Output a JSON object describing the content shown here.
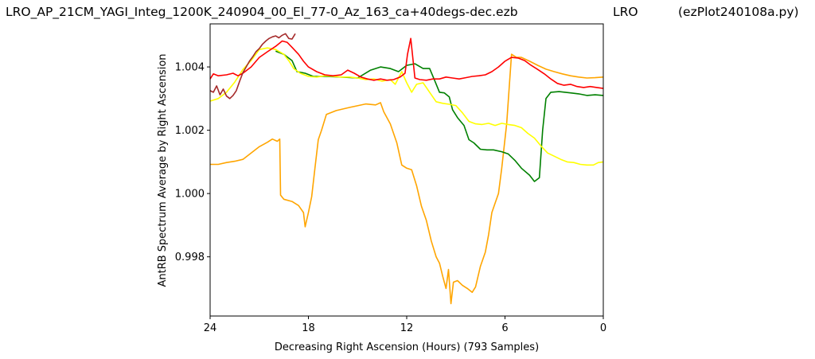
{
  "header": {
    "filename": "LRO_AP_21CM_YAGI_Integ_1200K_240904_00_El_77-0_Az_163_ca+40degs-dec.ezb",
    "site": "LRO",
    "program": "(ezPlot240108a.py)"
  },
  "chart_data": {
    "type": "line",
    "xlabel": "Decreasing Right Ascension (Hours) (793 Samples)",
    "ylabel": "AntRB Spectrum Average by Right Ascension",
    "xlim": [
      24,
      0
    ],
    "ylim": [
      0.99613,
      1.00536
    ],
    "x_reversed": true,
    "grid": false,
    "x_ticks": [
      24,
      18,
      12,
      6,
      0
    ],
    "x_tick_labels": [
      "24",
      "18",
      "12",
      "6",
      "0"
    ],
    "y_ticks": [
      0.998,
      1.0,
      1.002,
      1.004
    ],
    "y_tick_labels": [
      "0.998",
      "1.000",
      "1.002",
      "1.004"
    ],
    "series": [
      {
        "color": "#ffa500",
        "points": [
          [
            24.0,
            1.00092
          ],
          [
            23.5,
            1.00092
          ],
          [
            23.0,
            1.00098
          ],
          [
            22.5,
            1.00102
          ],
          [
            22.0,
            1.00108
          ],
          [
            21.5,
            1.00128
          ],
          [
            21.0,
            1.00148
          ],
          [
            20.5,
            1.00162
          ],
          [
            20.2,
            1.00172
          ],
          [
            19.9,
            1.00165
          ],
          [
            19.75,
            1.00172
          ],
          [
            19.7,
            0.99995
          ],
          [
            19.5,
            0.99982
          ],
          [
            19.0,
            0.99975
          ],
          [
            18.6,
            0.99962
          ],
          [
            18.3,
            0.9994
          ],
          [
            18.2,
            0.99895
          ],
          [
            18.0,
            0.9994
          ],
          [
            17.8,
            0.9999
          ],
          [
            17.6,
            1.0008
          ],
          [
            17.4,
            1.0017
          ],
          [
            17.2,
            1.002
          ],
          [
            16.9,
            1.0025
          ],
          [
            16.3,
            1.00262
          ],
          [
            15.5,
            1.00272
          ],
          [
            14.5,
            1.00283
          ],
          [
            13.9,
            1.0028
          ],
          [
            13.6,
            1.00287
          ],
          [
            13.4,
            1.00258
          ],
          [
            13.0,
            1.0022
          ],
          [
            12.6,
            1.0016
          ],
          [
            12.3,
            1.0009
          ],
          [
            12.0,
            1.0008
          ],
          [
            11.7,
            1.00075
          ],
          [
            11.4,
            1.00025
          ],
          [
            11.1,
            0.9996
          ],
          [
            10.8,
            0.99915
          ],
          [
            10.5,
            0.9985
          ],
          [
            10.2,
            0.998
          ],
          [
            10.0,
            0.9978
          ],
          [
            9.8,
            0.99738
          ],
          [
            9.6,
            0.997
          ],
          [
            9.45,
            0.9976
          ],
          [
            9.3,
            0.99652
          ],
          [
            9.15,
            0.9972
          ],
          [
            8.9,
            0.99725
          ],
          [
            8.6,
            0.9971
          ],
          [
            8.3,
            0.997
          ],
          [
            8.0,
            0.99688
          ],
          [
            7.8,
            0.99705
          ],
          [
            7.5,
            0.9977
          ],
          [
            7.2,
            0.99815
          ],
          [
            7.0,
            0.9987
          ],
          [
            6.8,
            0.9994
          ],
          [
            6.6,
            0.9997
          ],
          [
            6.4,
            1.0
          ],
          [
            6.2,
            1.0008
          ],
          [
            5.9,
            1.0022
          ],
          [
            5.6,
            1.0044
          ],
          [
            5.3,
            1.0043
          ],
          [
            5.0,
            1.0043
          ],
          [
            4.5,
            1.00418
          ],
          [
            4.0,
            1.00405
          ],
          [
            3.5,
            1.00393
          ],
          [
            3.0,
            1.00385
          ],
          [
            2.5,
            1.00378
          ],
          [
            2.0,
            1.00372
          ],
          [
            1.5,
            1.00368
          ],
          [
            1.0,
            1.00365
          ],
          [
            0.5,
            1.00366
          ],
          [
            0.0,
            1.00368
          ]
        ]
      },
      {
        "color": "#008000",
        "points": [
          [
            20.0,
            1.0045
          ],
          [
            19.5,
            1.0044
          ],
          [
            19.0,
            1.0042
          ],
          [
            18.7,
            1.00385
          ],
          [
            18.2,
            1.0038
          ],
          [
            17.7,
            1.0037
          ],
          [
            17.0,
            1.0037
          ],
          [
            16.0,
            1.00368
          ],
          [
            15.0,
            1.00365
          ],
          [
            14.2,
            1.0039
          ],
          [
            13.6,
            1.004
          ],
          [
            13.0,
            1.00395
          ],
          [
            12.5,
            1.00385
          ],
          [
            12.0,
            1.00405
          ],
          [
            11.5,
            1.0041
          ],
          [
            11.0,
            1.00395
          ],
          [
            10.6,
            1.00395
          ],
          [
            10.3,
            1.00358
          ],
          [
            10.0,
            1.0032
          ],
          [
            9.7,
            1.00318
          ],
          [
            9.4,
            1.00305
          ],
          [
            9.2,
            1.00265
          ],
          [
            8.9,
            1.0024
          ],
          [
            8.5,
            1.00215
          ],
          [
            8.2,
            1.0017
          ],
          [
            7.9,
            1.0016
          ],
          [
            7.7,
            1.0015
          ],
          [
            7.5,
            1.0014
          ],
          [
            7.1,
            1.00138
          ],
          [
            6.7,
            1.00138
          ],
          [
            6.2,
            1.00132
          ],
          [
            5.8,
            1.00125
          ],
          [
            5.4,
            1.00105
          ],
          [
            5.0,
            1.0008
          ],
          [
            4.5,
            1.00058
          ],
          [
            4.2,
            1.00038
          ],
          [
            3.9,
            1.0005
          ],
          [
            3.7,
            1.002
          ],
          [
            3.5,
            1.003
          ],
          [
            3.2,
            1.0032
          ],
          [
            2.7,
            1.00322
          ],
          [
            2.0,
            1.00318
          ],
          [
            1.5,
            1.00315
          ],
          [
            1.0,
            1.0031
          ],
          [
            0.5,
            1.00312
          ],
          [
            0.0,
            1.0031
          ]
        ]
      },
      {
        "color": "#ffff00",
        "points": [
          [
            24.0,
            1.00292
          ],
          [
            23.5,
            1.003
          ],
          [
            23.0,
            1.0032
          ],
          [
            22.5,
            1.00352
          ],
          [
            22.0,
            1.00392
          ],
          [
            21.5,
            1.0042
          ],
          [
            21.0,
            1.00455
          ],
          [
            20.5,
            1.0046
          ],
          [
            20.0,
            1.00455
          ],
          [
            19.5,
            1.0044
          ],
          [
            19.2,
            1.0042
          ],
          [
            18.9,
            1.00395
          ],
          [
            18.5,
            1.0038
          ],
          [
            18.0,
            1.0037
          ],
          [
            17.5,
            1.00368
          ],
          [
            17.0,
            1.00372
          ],
          [
            16.5,
            1.0037
          ],
          [
            16.0,
            1.00368
          ],
          [
            15.5,
            1.00368
          ],
          [
            15.0,
            1.00365
          ],
          [
            14.5,
            1.0036
          ],
          [
            14.0,
            1.00362
          ],
          [
            13.5,
            1.00355
          ],
          [
            13.0,
            1.0036
          ],
          [
            12.7,
            1.00345
          ],
          [
            12.3,
            1.00385
          ],
          [
            12.0,
            1.0035
          ],
          [
            11.7,
            1.0032
          ],
          [
            11.4,
            1.00345
          ],
          [
            11.0,
            1.0035
          ],
          [
            10.6,
            1.0032
          ],
          [
            10.2,
            1.0029
          ],
          [
            9.8,
            1.00285
          ],
          [
            9.4,
            1.00282
          ],
          [
            9.0,
            1.00278
          ],
          [
            8.6,
            1.00255
          ],
          [
            8.2,
            1.00228
          ],
          [
            7.8,
            1.0022
          ],
          [
            7.4,
            1.00218
          ],
          [
            7.0,
            1.00222
          ],
          [
            6.6,
            1.00215
          ],
          [
            6.2,
            1.00222
          ],
          [
            5.8,
            1.00218
          ],
          [
            5.4,
            1.00215
          ],
          [
            5.0,
            1.00208
          ],
          [
            4.6,
            1.0019
          ],
          [
            4.2,
            1.00175
          ],
          [
            3.8,
            1.0015
          ],
          [
            3.4,
            1.00128
          ],
          [
            3.0,
            1.00118
          ],
          [
            2.6,
            1.00108
          ],
          [
            2.2,
            1.001
          ],
          [
            1.8,
            1.00098
          ],
          [
            1.4,
            1.00092
          ],
          [
            1.0,
            1.0009
          ],
          [
            0.6,
            1.0009
          ],
          [
            0.3,
            1.00098
          ],
          [
            0.0,
            1.001
          ]
        ]
      },
      {
        "color": "#ff0000",
        "points": [
          [
            24.0,
            1.00362
          ],
          [
            23.8,
            1.00378
          ],
          [
            23.5,
            1.00372
          ],
          [
            23.0,
            1.00375
          ],
          [
            22.6,
            1.0038
          ],
          [
            22.3,
            1.00372
          ],
          [
            22.0,
            1.0038
          ],
          [
            21.5,
            1.004
          ],
          [
            21.0,
            1.0043
          ],
          [
            20.5,
            1.00448
          ],
          [
            20.0,
            1.00465
          ],
          [
            19.6,
            1.00482
          ],
          [
            19.3,
            1.00478
          ],
          [
            19.0,
            1.00462
          ],
          [
            18.6,
            1.0044
          ],
          [
            18.3,
            1.00418
          ],
          [
            18.0,
            1.004
          ],
          [
            17.5,
            1.00385
          ],
          [
            17.0,
            1.00375
          ],
          [
            16.5,
            1.00372
          ],
          [
            16.0,
            1.00375
          ],
          [
            15.6,
            1.0039
          ],
          [
            15.2,
            1.0038
          ],
          [
            14.8,
            1.00368
          ],
          [
            14.4,
            1.00362
          ],
          [
            14.0,
            1.00358
          ],
          [
            13.6,
            1.00362
          ],
          [
            13.2,
            1.00358
          ],
          [
            12.8,
            1.0036
          ],
          [
            12.4,
            1.00368
          ],
          [
            12.1,
            1.0038
          ],
          [
            11.95,
            1.0044
          ],
          [
            11.75,
            1.0049
          ],
          [
            11.65,
            1.0044
          ],
          [
            11.5,
            1.00365
          ],
          [
            11.2,
            1.0036
          ],
          [
            10.8,
            1.00358
          ],
          [
            10.4,
            1.00362
          ],
          [
            10.0,
            1.00362
          ],
          [
            9.6,
            1.00368
          ],
          [
            9.2,
            1.00365
          ],
          [
            8.8,
            1.00362
          ],
          [
            8.4,
            1.00366
          ],
          [
            8.0,
            1.0037
          ],
          [
            7.6,
            1.00372
          ],
          [
            7.2,
            1.00375
          ],
          [
            6.8,
            1.00385
          ],
          [
            6.4,
            1.004
          ],
          [
            6.0,
            1.00418
          ],
          [
            5.6,
            1.0043
          ],
          [
            5.2,
            1.00428
          ],
          [
            4.8,
            1.0042
          ],
          [
            4.4,
            1.00405
          ],
          [
            4.0,
            1.00392
          ],
          [
            3.6,
            1.00378
          ],
          [
            3.2,
            1.00362
          ],
          [
            2.8,
            1.00348
          ],
          [
            2.4,
            1.00342
          ],
          [
            2.0,
            1.00345
          ],
          [
            1.6,
            1.00338
          ],
          [
            1.2,
            1.00335
          ],
          [
            0.8,
            1.00338
          ],
          [
            0.4,
            1.00335
          ],
          [
            0.0,
            1.00332
          ]
        ]
      },
      {
        "color": "#a52a2a",
        "points": [
          [
            24.0,
            1.00325
          ],
          [
            23.8,
            1.0032
          ],
          [
            23.6,
            1.0034
          ],
          [
            23.4,
            1.00312
          ],
          [
            23.2,
            1.0033
          ],
          [
            23.0,
            1.00308
          ],
          [
            22.8,
            1.003
          ],
          [
            22.6,
            1.0031
          ],
          [
            22.4,
            1.00325
          ],
          [
            22.2,
            1.00355
          ],
          [
            22.0,
            1.00382
          ],
          [
            21.8,
            1.004
          ],
          [
            21.6,
            1.00418
          ],
          [
            21.4,
            1.00432
          ],
          [
            21.2,
            1.00448
          ],
          [
            21.0,
            1.00458
          ],
          [
            20.8,
            1.00472
          ],
          [
            20.6,
            1.00482
          ],
          [
            20.4,
            1.0049
          ],
          [
            20.2,
            1.00495
          ],
          [
            20.0,
            1.00498
          ],
          [
            19.8,
            1.00492
          ],
          [
            19.6,
            1.005
          ],
          [
            19.4,
            1.00505
          ],
          [
            19.2,
            1.0049
          ],
          [
            19.0,
            1.00488
          ],
          [
            18.8,
            1.00505
          ]
        ]
      }
    ]
  }
}
